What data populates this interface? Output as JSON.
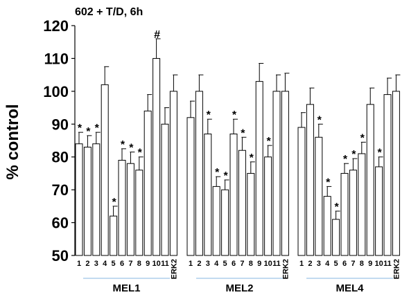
{
  "chart_data": {
    "type": "bar",
    "title": "602 + T/D, 6h",
    "ylabel": "% control",
    "xlabel": "",
    "ylim": [
      50,
      120
    ],
    "yticks": [
      50,
      60,
      70,
      80,
      90,
      100,
      110,
      120
    ],
    "grid": false,
    "bar_fill": "#ffffff",
    "bar_edge": "#000000",
    "group_underline_color": "#9dc3e6",
    "categories": [
      "1",
      "2",
      "3",
      "4",
      "5",
      "6",
      "7",
      "8",
      "9",
      "10",
      "11",
      "ERK2"
    ],
    "groups": [
      {
        "name": "MEL1",
        "values": [
          84,
          83,
          84,
          102,
          62,
          79,
          78,
          76,
          94,
          110,
          90,
          100
        ],
        "errors": [
          3.5,
          3.5,
          3.5,
          5.5,
          3,
          3.5,
          3.5,
          4,
          5,
          6,
          5,
          5
        ],
        "annotations": [
          "*",
          "*",
          "*",
          "",
          "*",
          "*",
          "*",
          "*",
          "",
          "#",
          "",
          ""
        ]
      },
      {
        "name": "MEL2",
        "values": [
          92,
          100,
          87,
          71,
          70,
          87,
          82,
          75,
          103,
          80,
          100,
          100
        ],
        "errors": [
          5,
          5,
          4.5,
          3,
          3,
          4.5,
          4,
          3.5,
          5.5,
          3.5,
          5,
          5.5
        ],
        "annotations": [
          "",
          "",
          "*",
          "*",
          "*",
          "*",
          "*",
          "*",
          "",
          "*",
          "",
          ""
        ]
      },
      {
        "name": "MEL4",
        "values": [
          89,
          96,
          86,
          68,
          61,
          75,
          76,
          81,
          96,
          77,
          99,
          100
        ],
        "errors": [
          4.5,
          5,
          4,
          3,
          2.5,
          3,
          3.5,
          3.5,
          5,
          3,
          5,
          5
        ],
        "annotations": [
          "",
          "",
          "*",
          "*",
          "*",
          "*",
          "*",
          "*",
          "",
          "*",
          "",
          ""
        ]
      }
    ]
  }
}
